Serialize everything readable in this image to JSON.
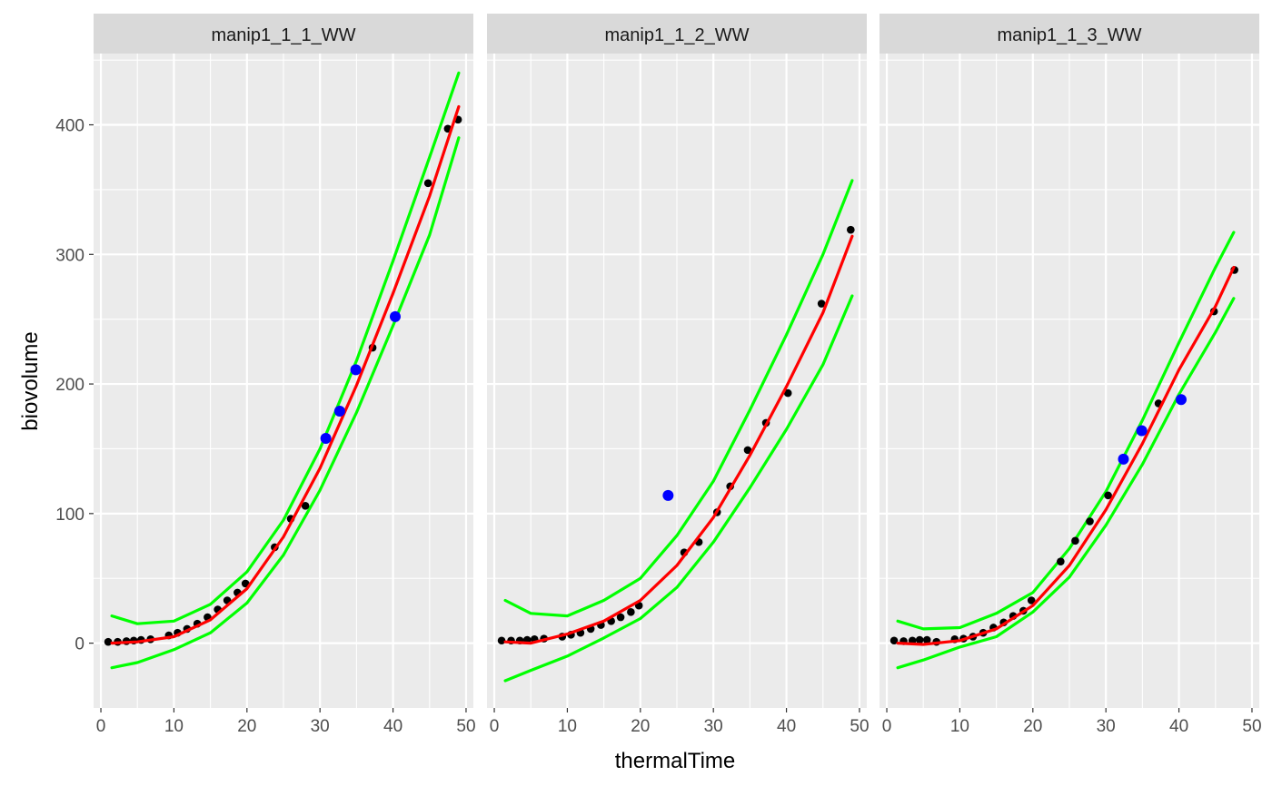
{
  "chart_data": {
    "type": "scatter",
    "layout": "facet_wrap",
    "xlabel": "thermalTime",
    "ylabel": "biovolume",
    "xlim": [
      -1,
      51
    ],
    "ylim": [
      -50,
      455
    ],
    "x_ticks": [
      0,
      10,
      20,
      30,
      40,
      50
    ],
    "y_ticks": [
      0,
      100,
      200,
      300,
      400
    ],
    "grid": true,
    "colors": {
      "panel_bg": "#ebebeb",
      "strip_bg": "#d9d9d9",
      "points": "#000000",
      "outliers": "#0000ff",
      "fit": "#ff0000",
      "interval": "#00ff00"
    },
    "panels": [
      {
        "title": "manip1_1_1_WW",
        "points": [
          [
            1,
            1
          ],
          [
            2.3,
            1
          ],
          [
            3.5,
            1.5
          ],
          [
            4.5,
            2
          ],
          [
            5.5,
            2.5
          ],
          [
            6.8,
            3
          ],
          [
            9.3,
            6
          ],
          [
            10.5,
            8
          ],
          [
            11.8,
            11
          ],
          [
            13.2,
            15
          ],
          [
            14.6,
            20
          ],
          [
            16,
            26
          ],
          [
            17.3,
            33
          ],
          [
            18.7,
            39
          ],
          [
            19.8,
            46
          ],
          [
            23.8,
            74
          ],
          [
            26,
            96
          ],
          [
            28,
            106
          ],
          [
            37.2,
            228
          ],
          [
            44.8,
            355
          ],
          [
            47.5,
            397
          ],
          [
            48.9,
            404
          ]
        ],
        "outliers": [
          [
            30.8,
            158
          ],
          [
            32.7,
            179
          ],
          [
            34.9,
            211
          ],
          [
            40.3,
            252
          ]
        ],
        "fit": [
          [
            1.5,
            0
          ],
          [
            5,
            1
          ],
          [
            10,
            5
          ],
          [
            15,
            18
          ],
          [
            20,
            42
          ],
          [
            25,
            82
          ],
          [
            30,
            135
          ],
          [
            35,
            199
          ],
          [
            40,
            270
          ],
          [
            45,
            345
          ],
          [
            49,
            414
          ]
        ],
        "lower": [
          [
            1.5,
            -19
          ],
          [
            5,
            -15
          ],
          [
            10,
            -5
          ],
          [
            15,
            8
          ],
          [
            20,
            31
          ],
          [
            25,
            68
          ],
          [
            30,
            118
          ],
          [
            35,
            178
          ],
          [
            40,
            245
          ],
          [
            45,
            315
          ],
          [
            49,
            390
          ]
        ],
        "upper": [
          [
            1.5,
            21
          ],
          [
            5,
            15
          ],
          [
            10,
            17
          ],
          [
            15,
            30
          ],
          [
            20,
            55
          ],
          [
            25,
            95
          ],
          [
            30,
            150
          ],
          [
            35,
            218
          ],
          [
            40,
            295
          ],
          [
            45,
            375
          ],
          [
            49,
            440
          ]
        ]
      },
      {
        "title": "manip1_1_2_WW",
        "points": [
          [
            1,
            2
          ],
          [
            2.3,
            2
          ],
          [
            3.5,
            2
          ],
          [
            4.5,
            2.5
          ],
          [
            5.5,
            3
          ],
          [
            6.8,
            3.5
          ],
          [
            9.3,
            5
          ],
          [
            10.5,
            6.5
          ],
          [
            11.8,
            8
          ],
          [
            13.2,
            11
          ],
          [
            14.6,
            14
          ],
          [
            16,
            17
          ],
          [
            17.3,
            20
          ],
          [
            18.7,
            24
          ],
          [
            19.8,
            29
          ],
          [
            26,
            70
          ],
          [
            28,
            78
          ],
          [
            30.5,
            101
          ],
          [
            32.3,
            121
          ],
          [
            34.7,
            149
          ],
          [
            37.2,
            170
          ],
          [
            40.2,
            193
          ],
          [
            44.8,
            262
          ],
          [
            48.8,
            319
          ]
        ],
        "outliers": [
          [
            23.8,
            114
          ]
        ],
        "fit": [
          [
            1.5,
            1
          ],
          [
            5,
            0
          ],
          [
            10,
            7
          ],
          [
            15,
            17
          ],
          [
            20,
            33
          ],
          [
            25,
            60
          ],
          [
            30,
            97
          ],
          [
            35,
            145
          ],
          [
            40,
            198
          ],
          [
            45,
            255
          ],
          [
            49,
            314
          ]
        ],
        "lower": [
          [
            1.5,
            -29
          ],
          [
            5,
            -21
          ],
          [
            10,
            -10
          ],
          [
            15,
            4
          ],
          [
            20,
            19
          ],
          [
            25,
            43
          ],
          [
            30,
            78
          ],
          [
            35,
            120
          ],
          [
            40,
            165
          ],
          [
            45,
            215
          ],
          [
            49,
            268
          ]
        ],
        "upper": [
          [
            1.5,
            33
          ],
          [
            5,
            23
          ],
          [
            10,
            21
          ],
          [
            15,
            33
          ],
          [
            20,
            50
          ],
          [
            25,
            83
          ],
          [
            30,
            125
          ],
          [
            35,
            180
          ],
          [
            40,
            238
          ],
          [
            45,
            300
          ],
          [
            49,
            357
          ]
        ]
      },
      {
        "title": "manip1_1_3_WW",
        "points": [
          [
            1,
            2
          ],
          [
            2.3,
            1.5
          ],
          [
            3.5,
            2
          ],
          [
            4.5,
            2.5
          ],
          [
            5.5,
            2.5
          ],
          [
            6.8,
            1
          ],
          [
            9.3,
            3
          ],
          [
            10.5,
            3.5
          ],
          [
            11.8,
            5
          ],
          [
            13.2,
            8
          ],
          [
            14.6,
            12
          ],
          [
            16,
            16
          ],
          [
            17.3,
            21
          ],
          [
            18.7,
            25
          ],
          [
            19.8,
            33
          ],
          [
            23.8,
            63
          ],
          [
            25.8,
            79
          ],
          [
            27.8,
            94
          ],
          [
            30.3,
            114
          ],
          [
            37.2,
            185
          ],
          [
            44.8,
            256
          ],
          [
            47.6,
            288
          ]
        ],
        "outliers": [
          [
            32.4,
            142
          ],
          [
            34.9,
            164
          ],
          [
            40.3,
            188
          ]
        ],
        "fit": [
          [
            1.5,
            0
          ],
          [
            5,
            -1
          ],
          [
            10,
            2
          ],
          [
            15,
            11
          ],
          [
            20,
            29
          ],
          [
            25,
            60
          ],
          [
            30,
            103
          ],
          [
            35,
            154
          ],
          [
            40,
            211
          ],
          [
            45,
            260
          ],
          [
            47.5,
            290
          ]
        ],
        "lower": [
          [
            1.5,
            -19
          ],
          [
            5,
            -13
          ],
          [
            10,
            -3
          ],
          [
            15,
            5
          ],
          [
            20,
            24
          ],
          [
            25,
            51
          ],
          [
            30,
            91
          ],
          [
            35,
            138
          ],
          [
            40,
            192
          ],
          [
            45,
            240
          ],
          [
            47.5,
            266
          ]
        ],
        "upper": [
          [
            1.5,
            17
          ],
          [
            5,
            11
          ],
          [
            10,
            12
          ],
          [
            15,
            23
          ],
          [
            20,
            39
          ],
          [
            25,
            73
          ],
          [
            30,
            117
          ],
          [
            35,
            172
          ],
          [
            40,
            232
          ],
          [
            45,
            290
          ],
          [
            47.5,
            317
          ]
        ]
      }
    ]
  }
}
